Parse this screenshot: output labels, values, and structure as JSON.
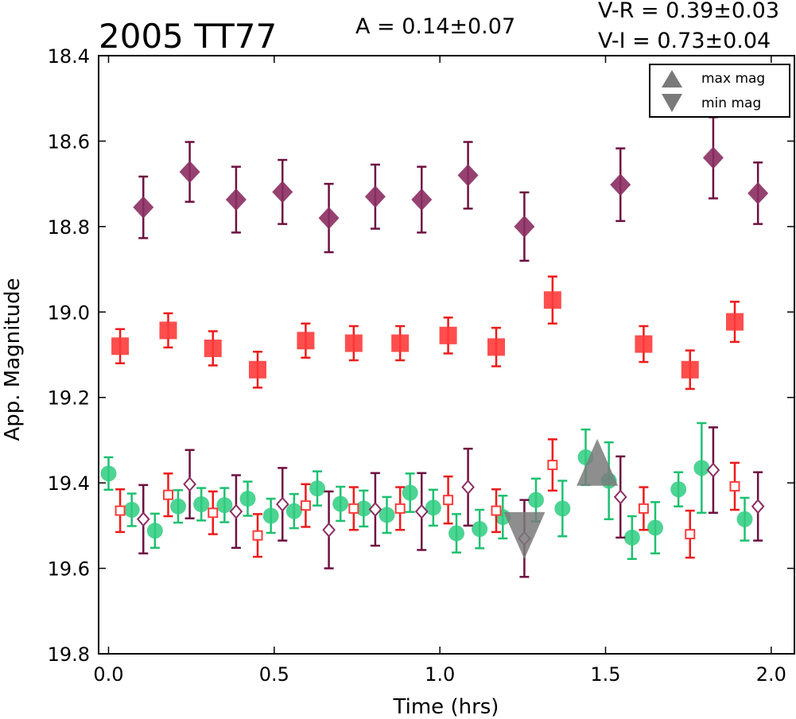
{
  "chart_data": {
    "type": "scatter",
    "title": "2005 TT77",
    "annotations": {
      "amplitude": "A  = 0.14±0.07",
      "v_r": "V-R = 0.39±0.03",
      "v_i": "V-I  = 0.73±0.04"
    },
    "xlabel": "Time (hrs)",
    "ylabel": "App. Magnitude",
    "xlim": [
      -0.03,
      2.07
    ],
    "ylim": [
      19.8,
      18.4
    ],
    "y_inverted": true,
    "grid": false,
    "x_ticks": [
      "0.0",
      "0.5",
      "1.0",
      "1.5",
      "2.0"
    ],
    "y_ticks": [
      "18.4",
      "18.6",
      "18.8",
      "19.0",
      "19.2",
      "19.4",
      "19.6",
      "19.8"
    ],
    "legend": {
      "placement": "top-right",
      "entries": [
        "max mag",
        "min mag"
      ]
    },
    "colors": {
      "purple": "#8b2d62",
      "purple_bar": "#6e1040",
      "red": "#ff3b3b",
      "red_bar": "#ee1a1a",
      "green": "#2ecc80",
      "green_bar": "#1ec070",
      "marker_gray": "#7a7a7a"
    },
    "series": [
      {
        "name": "",
        "marker": "filled-diamond",
        "color": "purple",
        "points": [
          {
            "x": 0.105,
            "y": 18.755,
            "err": 0.072
          },
          {
            "x": 0.245,
            "y": 18.672,
            "err": 0.07
          },
          {
            "x": 0.385,
            "y": 18.737,
            "err": 0.077
          },
          {
            "x": 0.525,
            "y": 18.719,
            "err": 0.075
          },
          {
            "x": 0.665,
            "y": 18.78,
            "err": 0.08
          },
          {
            "x": 0.805,
            "y": 18.73,
            "err": 0.075
          },
          {
            "x": 0.945,
            "y": 18.737,
            "err": 0.077
          },
          {
            "x": 1.085,
            "y": 18.68,
            "err": 0.078
          },
          {
            "x": 1.255,
            "y": 18.8,
            "err": 0.08
          },
          {
            "x": 1.545,
            "y": 18.702,
            "err": 0.085
          },
          {
            "x": 1.825,
            "y": 18.639,
            "err": 0.095
          },
          {
            "x": 1.96,
            "y": 18.722,
            "err": 0.072
          }
        ]
      },
      {
        "name": "",
        "marker": "filled-square",
        "color": "red",
        "points": [
          {
            "x": 0.035,
            "y": 19.08,
            "err": 0.04
          },
          {
            "x": 0.18,
            "y": 19.043,
            "err": 0.04
          },
          {
            "x": 0.315,
            "y": 19.085,
            "err": 0.04
          },
          {
            "x": 0.45,
            "y": 19.135,
            "err": 0.042
          },
          {
            "x": 0.595,
            "y": 19.067,
            "err": 0.04
          },
          {
            "x": 0.74,
            "y": 19.073,
            "err": 0.04
          },
          {
            "x": 0.88,
            "y": 19.073,
            "err": 0.04
          },
          {
            "x": 1.025,
            "y": 19.055,
            "err": 0.042
          },
          {
            "x": 1.17,
            "y": 19.082,
            "err": 0.045
          },
          {
            "x": 1.34,
            "y": 18.972,
            "err": 0.055
          },
          {
            "x": 1.615,
            "y": 19.075,
            "err": 0.042
          },
          {
            "x": 1.755,
            "y": 19.135,
            "err": 0.045
          },
          {
            "x": 1.89,
            "y": 19.023,
            "err": 0.047
          }
        ]
      },
      {
        "name": "",
        "marker": "filled-circle",
        "color": "green",
        "points": [
          {
            "x": 0.0,
            "y": 19.378,
            "err": 0.038
          },
          {
            "x": 0.07,
            "y": 19.463,
            "err": 0.038
          },
          {
            "x": 0.14,
            "y": 19.512,
            "err": 0.04
          },
          {
            "x": 0.21,
            "y": 19.455,
            "err": 0.038
          },
          {
            "x": 0.28,
            "y": 19.45,
            "err": 0.038
          },
          {
            "x": 0.35,
            "y": 19.452,
            "err": 0.04
          },
          {
            "x": 0.42,
            "y": 19.437,
            "err": 0.04
          },
          {
            "x": 0.49,
            "y": 19.477,
            "err": 0.04
          },
          {
            "x": 0.56,
            "y": 19.466,
            "err": 0.04
          },
          {
            "x": 0.63,
            "y": 19.413,
            "err": 0.04
          },
          {
            "x": 0.7,
            "y": 19.449,
            "err": 0.04
          },
          {
            "x": 0.77,
            "y": 19.46,
            "err": 0.042
          },
          {
            "x": 0.84,
            "y": 19.475,
            "err": 0.042
          },
          {
            "x": 0.91,
            "y": 19.423,
            "err": 0.045
          },
          {
            "x": 0.98,
            "y": 19.458,
            "err": 0.042
          },
          {
            "x": 1.05,
            "y": 19.518,
            "err": 0.045
          },
          {
            "x": 1.12,
            "y": 19.508,
            "err": 0.045
          },
          {
            "x": 1.19,
            "y": 19.48,
            "err": 0.05
          },
          {
            "x": 1.29,
            "y": 19.44,
            "err": 0.05
          },
          {
            "x": 1.37,
            "y": 19.46,
            "err": 0.065
          },
          {
            "x": 1.44,
            "y": 19.34,
            "err": 0.065
          },
          {
            "x": 1.51,
            "y": 19.395,
            "err": 0.09
          },
          {
            "x": 1.58,
            "y": 19.528,
            "err": 0.05
          },
          {
            "x": 1.65,
            "y": 19.505,
            "err": 0.06
          },
          {
            "x": 1.72,
            "y": 19.415,
            "err": 0.04
          },
          {
            "x": 1.79,
            "y": 19.365,
            "err": 0.105
          },
          {
            "x": 1.92,
            "y": 19.485,
            "err": 0.05
          }
        ]
      },
      {
        "name": "",
        "marker": "open-square",
        "color": "red",
        "points": [
          {
            "x": 0.035,
            "y": 19.465,
            "err": 0.05
          },
          {
            "x": 0.18,
            "y": 19.428,
            "err": 0.05
          },
          {
            "x": 0.315,
            "y": 19.47,
            "err": 0.05
          },
          {
            "x": 0.45,
            "y": 19.523,
            "err": 0.05
          },
          {
            "x": 0.595,
            "y": 19.453,
            "err": 0.05
          },
          {
            "x": 0.74,
            "y": 19.46,
            "err": 0.05
          },
          {
            "x": 0.88,
            "y": 19.46,
            "err": 0.05
          },
          {
            "x": 1.025,
            "y": 19.44,
            "err": 0.055
          },
          {
            "x": 1.17,
            "y": 19.465,
            "err": 0.05
          },
          {
            "x": 1.34,
            "y": 19.358,
            "err": 0.06
          },
          {
            "x": 1.615,
            "y": 19.46,
            "err": 0.05
          },
          {
            "x": 1.755,
            "y": 19.52,
            "err": 0.055
          },
          {
            "x": 1.89,
            "y": 19.408,
            "err": 0.055
          }
        ]
      },
      {
        "name": "",
        "marker": "open-diamond",
        "color": "purple",
        "points": [
          {
            "x": 0.105,
            "y": 19.485,
            "err": 0.08
          },
          {
            "x": 0.245,
            "y": 19.403,
            "err": 0.08
          },
          {
            "x": 0.385,
            "y": 19.467,
            "err": 0.085
          },
          {
            "x": 0.525,
            "y": 19.45,
            "err": 0.085
          },
          {
            "x": 0.665,
            "y": 19.51,
            "err": 0.09
          },
          {
            "x": 0.805,
            "y": 19.462,
            "err": 0.085
          },
          {
            "x": 0.945,
            "y": 19.467,
            "err": 0.09
          },
          {
            "x": 1.085,
            "y": 19.41,
            "err": 0.09
          },
          {
            "x": 1.255,
            "y": 19.53,
            "err": 0.09
          },
          {
            "x": 1.545,
            "y": 19.433,
            "err": 0.095
          },
          {
            "x": 1.825,
            "y": 19.37,
            "err": 0.1
          },
          {
            "x": 1.96,
            "y": 19.455,
            "err": 0.08
          }
        ]
      }
    ],
    "markers": {
      "max_mag": {
        "x": 1.475,
        "y": 19.375
      },
      "min_mag": {
        "x": 1.255,
        "y": 19.5
      }
    }
  }
}
